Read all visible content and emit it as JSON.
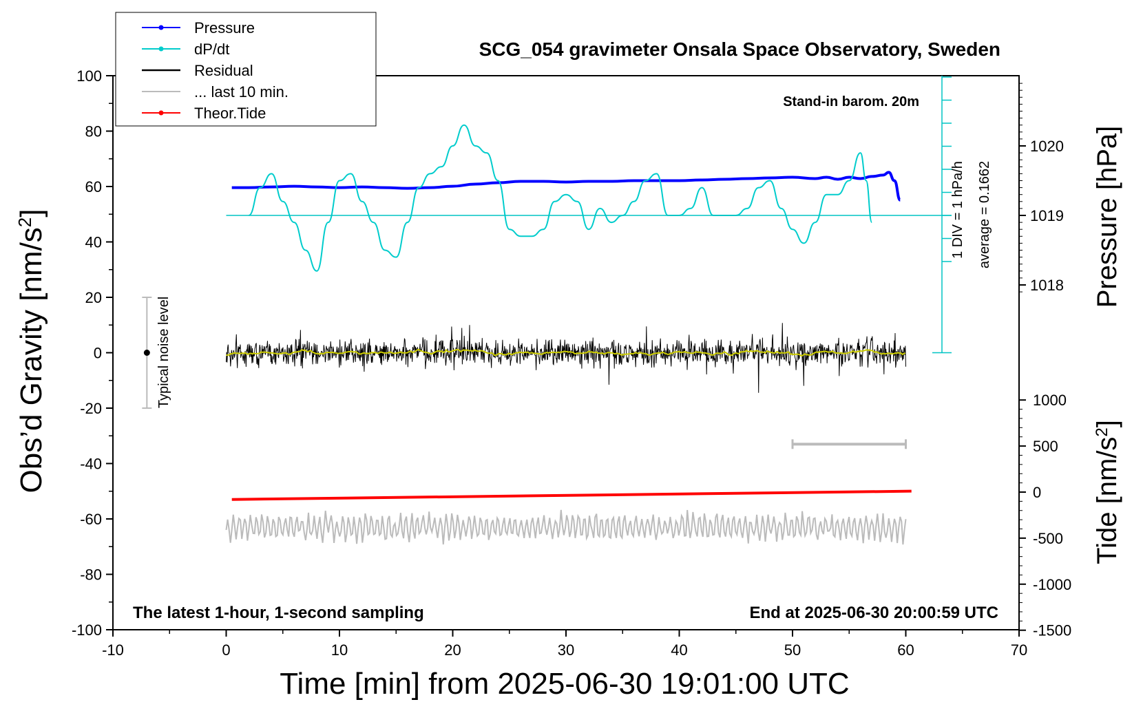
{
  "chart_data": {
    "type": "line",
    "title": "SCG_054 gravimeter Onsala Space Observatory, Sweden",
    "xlabel": "Time [min] from 2025-06-30 19:01:00 UTC",
    "ylabel_left": "Obs’d Gravity [nm/s²]",
    "ylabel_right_top": "Pressure [hPa]",
    "ylabel_right_bottom": "Tide [nm/s²]",
    "xlim": [
      -10,
      70
    ],
    "ylim_left": [
      -100,
      100
    ],
    "x_ticks": [
      "-10",
      "0",
      "10",
      "20",
      "30",
      "40",
      "50",
      "60",
      "70"
    ],
    "y_ticks_left": [
      "100",
      "80",
      "60",
      "40",
      "20",
      "0",
      "-20",
      "-40",
      "-60",
      "-80",
      "-100"
    ],
    "pressure_ticks": [
      "1020",
      "1019",
      "1018"
    ],
    "tide_ticks": [
      "1000",
      "500",
      "0",
      "-500",
      "-1000",
      "-1500"
    ],
    "note_bottom_left": "The latest 1-hour, 1-second sampling",
    "note_bottom_right": "End at 2025-06-30 20:00:59 UTC",
    "note_barometer": "Stand-in barom. 20m",
    "note_div": "1 DIV = 1 hPa/h",
    "note_average": "average = 0.1662",
    "noise_label": "Typical noise level",
    "noise_level": {
      "x": -7,
      "center": 0,
      "low": -20,
      "high": 20
    },
    "ten_min_bar": {
      "x_start": 50,
      "x_end": 60,
      "y": -33
    },
    "legend": [
      {
        "label": "Pressure",
        "color": "#0000ff",
        "marker": true
      },
      {
        "label": "dP/dt",
        "color": "#00cccc",
        "marker": true
      },
      {
        "label": "Residual",
        "color": "#000000",
        "marker": false
      },
      {
        "label": "... last 10 min.",
        "color": "#bbbbbb",
        "marker": false
      },
      {
        "label": "Theor.Tide",
        "color": "#ff0000",
        "marker": true
      }
    ],
    "series": [
      {
        "name": "Pressure",
        "color": "#0000ff",
        "unit": "hPa",
        "x": [
          0.5,
          2,
          4,
          6,
          8,
          10,
          12,
          14,
          16,
          18,
          20,
          22,
          24,
          26,
          28,
          30,
          32,
          34,
          36,
          38,
          40,
          42,
          44,
          46,
          48,
          50,
          52,
          53,
          54,
          55,
          56,
          57,
          58,
          58.5,
          59,
          59.5
        ],
        "values": [
          1019.4,
          1019.4,
          1019.41,
          1019.42,
          1019.41,
          1019.4,
          1019.41,
          1019.4,
          1019.39,
          1019.4,
          1019.42,
          1019.45,
          1019.47,
          1019.49,
          1019.49,
          1019.48,
          1019.49,
          1019.49,
          1019.5,
          1019.5,
          1019.5,
          1019.51,
          1019.52,
          1019.53,
          1019.54,
          1019.55,
          1019.53,
          1019.55,
          1019.52,
          1019.55,
          1019.53,
          1019.56,
          1019.58,
          1019.62,
          1019.5,
          1019.22
        ]
      },
      {
        "name": "dP/dt",
        "color": "#00cccc",
        "unit": "hPa/h",
        "x": [
          2,
          3,
          4,
          5,
          6,
          7,
          8,
          9,
          10,
          11,
          12,
          13,
          14,
          15,
          16,
          17,
          18,
          19,
          20,
          21,
          22,
          23,
          24,
          25,
          26,
          27,
          28,
          29,
          30,
          31,
          32,
          33,
          34,
          35,
          36,
          37,
          38,
          39,
          40,
          41,
          42,
          43,
          44,
          45,
          46,
          47,
          48,
          49,
          50,
          51,
          52,
          53,
          54,
          55,
          56,
          56.5,
          57
        ],
        "values": [
          1019.0,
          1019.4,
          1019.6,
          1019.2,
          1018.9,
          1018.5,
          1018.2,
          1018.9,
          1019.5,
          1019.6,
          1019.2,
          1018.9,
          1018.5,
          1018.4,
          1018.9,
          1019.4,
          1019.6,
          1019.7,
          1020.0,
          1020.3,
          1020.0,
          1019.9,
          1019.5,
          1018.8,
          1018.7,
          1018.7,
          1018.8,
          1019.2,
          1019.3,
          1019.2,
          1018.8,
          1019.1,
          1018.9,
          1019.0,
          1019.2,
          1019.5,
          1019.6,
          1019.0,
          1019.0,
          1019.1,
          1019.4,
          1019.0,
          1019.0,
          1019.0,
          1019.1,
          1019.4,
          1019.5,
          1019.1,
          1018.8,
          1018.6,
          1018.9,
          1019.3,
          1019.3,
          1019.5,
          1019.9,
          1019.5,
          1018.9
        ]
      },
      {
        "name": "Residual",
        "color": "#000000",
        "unit": "nm/s²",
        "x_range": [
          0,
          60
        ],
        "typical_amplitude": 6,
        "min": -15,
        "max": 13,
        "smoothed_color": "#cccc00",
        "smoothed_mean": 0
      },
      {
        "name": "... last 10 min.",
        "color": "#bbbbbb",
        "unit": "nm/s²",
        "x_range": [
          0,
          60
        ],
        "offset": -63,
        "typical_amplitude": 4,
        "min": -72,
        "max": -51
      },
      {
        "name": "Theor.Tide",
        "color": "#ff0000",
        "unit": "nm/s²",
        "x": [
          0.5,
          60.5
        ],
        "values": [
          -80,
          10
        ]
      }
    ]
  }
}
